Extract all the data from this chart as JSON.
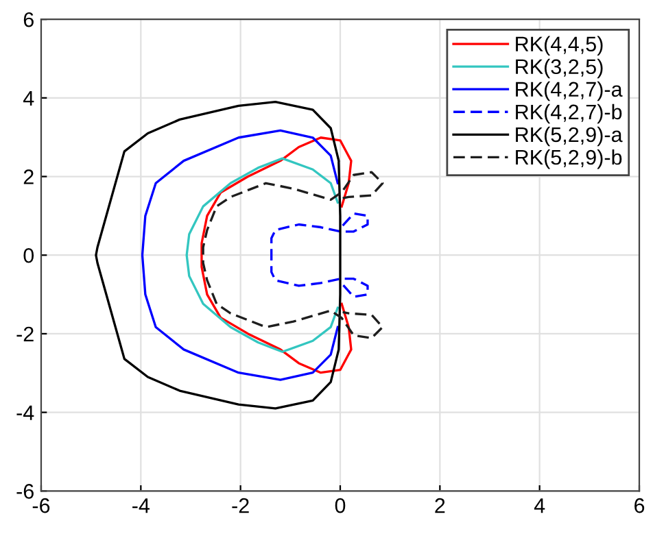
{
  "chart_data": {
    "type": "line",
    "xlim": [
      -6,
      6
    ],
    "ylim": [
      -6,
      6
    ],
    "xticks": [
      -6,
      -4,
      -2,
      0,
      2,
      4,
      6
    ],
    "yticks": [
      -6,
      -4,
      -2,
      0,
      2,
      4,
      6
    ],
    "grid": true,
    "legend": "top right",
    "marker": "none",
    "series": [
      {
        "name": "RK(4,4,5)",
        "color": "#ff0000",
        "line_style": "solid",
        "x": [
          0.03,
          0.17,
          0.22,
          0,
          -0.39,
          -0.83,
          -1.2,
          -1.85,
          -2.4,
          -2.67,
          -2.78,
          -2.78,
          -2.67,
          -2.4,
          -1.85,
          -1.2,
          -0.83,
          -0.39,
          0,
          0.22,
          0.17,
          0.03
        ],
        "values": [
          1.24,
          1.83,
          2.4,
          2.92,
          2.99,
          2.75,
          2.4,
          2.0,
          1.59,
          1.0,
          0.3,
          -0.3,
          -1.0,
          -1.59,
          -2.0,
          -2.4,
          -2.75,
          -2.99,
          -2.92,
          -2.4,
          -1.83,
          -1.24
        ]
      },
      {
        "name": "RK(3,2,5)",
        "color": "#33c6c0",
        "line_style": "solid",
        "x": [
          -0.05,
          -0.19,
          -0.55,
          -1.16,
          -1.65,
          -2.2,
          -2.75,
          -3.03,
          -3.08,
          -3.03,
          -2.75,
          -2.2,
          -1.65,
          -1.16,
          -0.55,
          -0.19,
          -0.05
        ],
        "values": [
          1.34,
          1.83,
          2.18,
          2.46,
          2.22,
          1.83,
          1.24,
          0.53,
          0,
          -0.53,
          -1.24,
          -1.83,
          -2.22,
          -2.46,
          -2.18,
          -1.83,
          -1.34
        ]
      },
      {
        "name": "RK(4,2,7)-a",
        "color": "#0000ff",
        "line_style": "solid",
        "x": [
          -0.05,
          -0.19,
          -0.55,
          -1.2,
          -2.04,
          -3.14,
          -3.7,
          -3.91,
          -3.97,
          -3.91,
          -3.7,
          -3.14,
          -2.04,
          -1.2,
          -0.55,
          -0.19,
          -0.05
        ],
        "values": [
          1.83,
          2.53,
          2.99,
          3.17,
          2.99,
          2.4,
          1.83,
          1.0,
          0,
          -1.0,
          -1.83,
          -2.4,
          -2.99,
          -3.17,
          -2.99,
          -2.53,
          -1.83
        ]
      },
      {
        "name": "RK(4,2,7)-b",
        "color": "#0000ff",
        "line_style": "dashed",
        "x": [
          0.05,
          0.27,
          0.55,
          0.55,
          0.27,
          0,
          -0.39,
          -0.83,
          -1.3,
          -1.38,
          -1.38,
          -1.3,
          -0.83,
          -0.39,
          0,
          0.27,
          0.55,
          0.55,
          0.27,
          0.05
        ],
        "values": [
          0.75,
          1.06,
          1.0,
          0.78,
          0.6,
          0.6,
          0.71,
          0.78,
          0.64,
          0.43,
          -0.43,
          -0.64,
          -0.78,
          -0.71,
          -0.6,
          -0.6,
          -0.78,
          -1.0,
          -1.06,
          -0.75
        ]
      },
      {
        "name": "RK(5,2,9)-a",
        "color": "#000000",
        "line_style": "solid",
        "x": [
          -0.03,
          -0.19,
          -0.55,
          -1.3,
          -2.04,
          -3.22,
          -3.86,
          -4.33,
          -4.87,
          -4.9,
          -4.87,
          -4.33,
          -3.86,
          -3.22,
          -2.04,
          -1.3,
          -0.55,
          -0.19,
          -0.03,
          0,
          0,
          0,
          -0.03
        ],
        "values": [
          2.4,
          3.23,
          3.7,
          3.9,
          3.8,
          3.45,
          3.1,
          2.64,
          0.2,
          0,
          -0.2,
          -2.64,
          -3.1,
          -3.45,
          -3.8,
          -3.9,
          -3.7,
          -3.23,
          -2.4,
          -1.0,
          0,
          1.0,
          2.35
        ]
      },
      {
        "name": "RK(5,2,9)-b",
        "color": "#1e1e1e",
        "line_style": "dashed",
        "x": [
          0.05,
          0.17,
          0.63,
          0.85,
          0.63,
          0.27,
          0.03,
          -0.19,
          -0.94,
          -1.49,
          -2.2,
          -2.48,
          -2.67,
          -2.75,
          -2.75,
          -2.67,
          -2.48,
          -2.2,
          -1.49,
          -0.94,
          -0.19,
          0.03,
          0.27,
          0.63,
          0.85,
          0.63,
          0.17,
          0.05
        ],
        "values": [
          1.45,
          1.48,
          1.52,
          1.83,
          2.11,
          2.04,
          1.6,
          1.41,
          1.69,
          1.83,
          1.48,
          1.24,
          0.64,
          0.2,
          -0.2,
          -0.64,
          -1.24,
          -1.48,
          -1.83,
          -1.69,
          -1.41,
          -1.6,
          -2.04,
          -2.11,
          -1.83,
          -1.52,
          -1.48,
          -1.45
        ]
      }
    ]
  }
}
